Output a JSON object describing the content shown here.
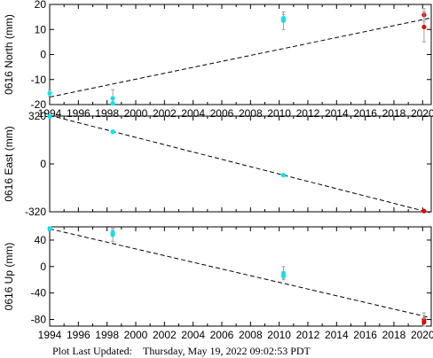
{
  "footer": {
    "label": "Plot Last Updated:",
    "timestamp": "Thursday, May 19, 2022 09:02:53 PDT"
  },
  "colors": {
    "campaign": "#00e5ee",
    "continuous": "#e00000",
    "errorbar": "#a0a0a0",
    "trend": "#000000"
  },
  "chart_data": [
    {
      "type": "scatter",
      "ylabel": "0616 North (mm)",
      "xlim": [
        1994,
        2020.6
      ],
      "ylim": [
        -20,
        20
      ],
      "xticks": [
        "1994",
        "1996",
        "1998",
        "2000",
        "2002",
        "2004",
        "2006",
        "2008",
        "2010",
        "2012",
        "2014",
        "2016",
        "2018",
        "2020"
      ],
      "yticks": [
        -20,
        -10,
        0,
        10,
        20
      ],
      "trend": [
        [
          1994,
          -17
        ],
        [
          2020.5,
          14.5
        ]
      ],
      "series": [
        {
          "color_key": "campaign",
          "points": [
            {
              "x": 1994.0,
              "y": -15.5,
              "err": 1.2
            },
            {
              "x": 1998.4,
              "y": -17.5,
              "err": 3.5
            },
            {
              "x": 1998.4,
              "y": -19.5,
              "err": 1.5
            },
            {
              "x": 2010.3,
              "y": 13.5,
              "err": 3.5
            },
            {
              "x": 2010.3,
              "y": 14.5,
              "err": 1.5
            }
          ]
        },
        {
          "color_key": "continuous",
          "points": [
            {
              "x": 2020.1,
              "y": 15.8,
              "err": 2.5
            },
            {
              "x": 2020.1,
              "y": 11.0,
              "err": 6.0
            }
          ]
        }
      ]
    },
    {
      "type": "scatter",
      "ylabel": "0616 East (mm)",
      "xlim": [
        1994,
        2020.6
      ],
      "ylim": [
        -320,
        320
      ],
      "xticks": [],
      "yticks": [
        -320,
        0,
        320
      ],
      "trend": [
        [
          1994,
          325
        ],
        [
          2020.5,
          -325
        ]
      ],
      "series": [
        {
          "color_key": "campaign",
          "points": [
            {
              "x": 1994.0,
              "y": 318,
              "err": 5
            },
            {
              "x": 1998.4,
              "y": 215,
              "err": 6
            },
            {
              "x": 2010.3,
              "y": -75,
              "err": 6
            }
          ]
        },
        {
          "color_key": "continuous",
          "points": [
            {
              "x": 2020.1,
              "y": -315,
              "err": 6
            }
          ]
        }
      ]
    },
    {
      "type": "scatter",
      "ylabel": "0616 Up (mm)",
      "xlim": [
        1994,
        2020.6
      ],
      "ylim": [
        -90,
        60
      ],
      "xticks": [
        "1994",
        "1996",
        "1998",
        "2000",
        "2002",
        "2004",
        "2006",
        "2008",
        "2010",
        "2012",
        "2014",
        "2016",
        "2018",
        "2020"
      ],
      "yticks": [
        -80,
        -40,
        0,
        40
      ],
      "trend": [
        [
          1994,
          57
        ],
        [
          2020.5,
          -77
        ]
      ],
      "series": [
        {
          "color_key": "campaign",
          "points": [
            {
              "x": 1994.0,
              "y": 57,
              "err": 3
            },
            {
              "x": 1998.4,
              "y": 48,
              "err": 10
            },
            {
              "x": 1998.4,
              "y": 51,
              "err": 4
            },
            {
              "x": 2010.3,
              "y": -10,
              "err": 10
            },
            {
              "x": 2010.3,
              "y": -14,
              "err": 4
            }
          ]
        },
        {
          "color_key": "continuous",
          "points": [
            {
              "x": 2020.1,
              "y": -80,
              "err": 10
            },
            {
              "x": 2020.1,
              "y": -84,
              "err": 6
            }
          ]
        }
      ]
    }
  ]
}
